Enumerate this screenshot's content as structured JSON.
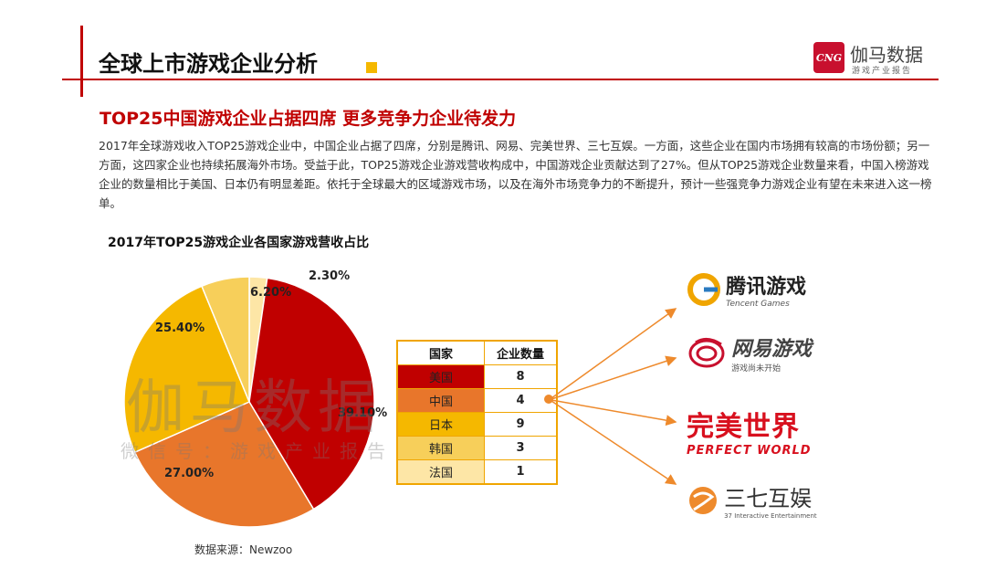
{
  "header": {
    "title": "全球上市游戏企业分析",
    "logo_badge": "CNG",
    "logo_name": "伽马数据",
    "logo_sub": "游戏产业报告"
  },
  "subtitle": "TOP25中国游戏企业占据四席  更多竞争力企业待发力",
  "paragraph": "2017年全球游戏收入TOP25游戏企业中，中国企业占据了四席，分别是腾讯、网易、完美世界、三七互娱。一方面，这些企业在国内市场拥有较高的市场份额；另一方面，这四家企业也持续拓展海外市场。受益于此，TOP25游戏企业游戏营收构成中，中国游戏企业贡献达到了27%。但从TOP25游戏企业数量来看，中国入榜游戏企业的数量相比于美国、日本仍有明显差距。依托于全球最大的区域游戏市场，以及在海外市场竞争力的不断提升，预计一些强竞争力游戏企业有望在未来进入这一榜单。",
  "watermark": {
    "main": "伽马数据",
    "sub": "微信号：游戏产业报告"
  },
  "source": "数据来源：Newzoo",
  "colors": {
    "accent_red": "#c00000",
    "us": "#c00000",
    "cn": "#e8762b",
    "jp": "#f5b800",
    "kr": "#f7cf5a",
    "fr": "#fde6a6"
  },
  "chart_data": [
    {
      "type": "pie",
      "title": "2017年TOP25游戏企业各国家游戏营收占比",
      "slices": [
        {
          "label": "39.10%",
          "value": 39.1,
          "color": "#c00000"
        },
        {
          "label": "27.00%",
          "value": 27.0,
          "color": "#e8762b"
        },
        {
          "label": "25.40%",
          "value": 25.4,
          "color": "#f5b800"
        },
        {
          "label": "6.20%",
          "value": 6.2,
          "color": "#f7cf5a"
        },
        {
          "label": "2.30%",
          "value": 2.3,
          "color": "#fde6a6"
        }
      ]
    },
    {
      "type": "table",
      "columns": [
        "国家",
        "企业数量"
      ],
      "rows": [
        {
          "country": "美国",
          "count": "8",
          "color": "#c00000"
        },
        {
          "country": "中国",
          "count": "4",
          "color": "#e8762b"
        },
        {
          "country": "日本",
          "count": "9",
          "color": "#f5b800"
        },
        {
          "country": "韩国",
          "count": "3",
          "color": "#f7cf5a"
        },
        {
          "country": "法国",
          "count": "1",
          "color": "#fde6a6"
        }
      ]
    }
  ],
  "brands": {
    "tencent": {
      "main": "腾讯游戏",
      "sub": "Tencent Games",
      "icon": "tencent-logo-icon"
    },
    "netease": {
      "main": "网易游戏",
      "sub": "游戏尚未开始",
      "icon": "netease-logo-icon"
    },
    "perfect": {
      "main": "完美世界",
      "sub": "PERFECT WORLD",
      "icon": "perfect-world-logo-icon"
    },
    "sanqi": {
      "main": "三七互娱",
      "sub": "37 Interactive Entertainment",
      "icon": "37-logo-icon"
    }
  }
}
